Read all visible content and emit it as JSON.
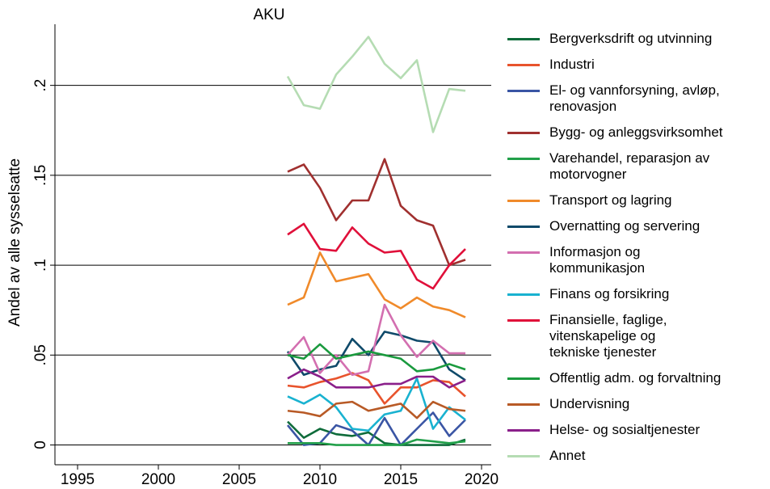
{
  "chart_data": {
    "type": "line",
    "title": "AKU",
    "y_label": "Andel av alle sysselsatte",
    "x": [
      2008,
      2009,
      2010,
      2011,
      2012,
      2013,
      2014,
      2015,
      2016,
      2017,
      2018,
      2019
    ],
    "xlim": [
      1993.6,
      2020.6
    ],
    "xticks": [
      1995,
      2000,
      2005,
      2010,
      2015,
      2020
    ],
    "ylim": [
      -0.011,
      0.234
    ],
    "yticks": [
      0,
      {
        "value": 0.05,
        "label": ".05"
      },
      {
        "value": 0.1,
        "label": ".1"
      },
      {
        "value": 0.15,
        "label": ".15"
      },
      {
        "value": 0.2,
        "label": ".2"
      }
    ],
    "grid": true,
    "series": [
      {
        "name": "Bergverksdrift og utvinning",
        "color": "#0e6b3a",
        "values": [
          0.013,
          0.004,
          0.009,
          0.006,
          0.005,
          0.007,
          0.001,
          0,
          0,
          0,
          0,
          0.003
        ]
      },
      {
        "name": "Industri",
        "color": "#e8532c",
        "values": [
          0.033,
          0.032,
          0.035,
          0.037,
          0.04,
          0.036,
          0.023,
          0.032,
          0.032,
          0.036,
          0.035,
          0.027
        ]
      },
      {
        "name": "El- og vannforsyning, avløp,\nrenovasjon",
        "color": "#3a55a4",
        "values": [
          0.011,
          0.0,
          0.001,
          0.011,
          0.008,
          0.0,
          0.015,
          0.0,
          0.009,
          0.018,
          0.005,
          0.014
        ]
      },
      {
        "name": "Bygg- og anleggsvirksomhet",
        "color": "#a0302f",
        "values": [
          0.152,
          0.156,
          0.143,
          0.125,
          0.136,
          0.136,
          0.159,
          0.133,
          0.125,
          0.122,
          0.1,
          0.103
        ]
      },
      {
        "name": "Varehandel, reparasjon av\nmotorvogner",
        "color": "#22a04a",
        "values": [
          0.001,
          0.001,
          0.001,
          0,
          0,
          0,
          0,
          0,
          0.003,
          0.002,
          0.001,
          0.002
        ]
      },
      {
        "name": "Transport og lagring",
        "color": "#f08a2a",
        "values": [
          0.078,
          0.082,
          0.107,
          0.091,
          0.093,
          0.095,
          0.081,
          0.076,
          0.082,
          0.077,
          0.075,
          0.071
        ]
      },
      {
        "name": "Overnatting og servering",
        "color": "#0f4a6a",
        "values": [
          0.052,
          0.039,
          0.042,
          0.044,
          0.059,
          0.05,
          0.063,
          0.061,
          0.058,
          0.057,
          0.042,
          0.036
        ]
      },
      {
        "name": "Informasjon og\nkommunikasjon",
        "color": "#d36fb0",
        "values": [
          0.05,
          0.06,
          0.04,
          0.05,
          0.039,
          0.041,
          0.078,
          0.061,
          0.049,
          0.058,
          0.051,
          0.051
        ]
      },
      {
        "name": "Finans og forsikring",
        "color": "#19b2d0",
        "values": [
          0.027,
          0.023,
          0.028,
          0.021,
          0.009,
          0.008,
          0.017,
          0.019,
          0.037,
          0.009,
          0.021,
          0.014
        ]
      },
      {
        "name": "Finansielle, faglige,\nvitenskapelige og\ntekniske tjenester",
        "color": "#e0103a",
        "values": [
          0.117,
          0.123,
          0.109,
          0.108,
          0.121,
          0.112,
          0.107,
          0.108,
          0.092,
          0.087,
          0.1,
          0.109
        ]
      },
      {
        "name": "Offentlig adm. og forvaltning",
        "color": "#1a9a3e",
        "values": [
          0.05,
          0.048,
          0.056,
          0.048,
          0.05,
          0.052,
          0.05,
          0.048,
          0.041,
          0.042,
          0.045,
          0.042
        ]
      },
      {
        "name": "Undervisning",
        "color": "#b85a26",
        "values": [
          0.019,
          0.018,
          0.016,
          0.023,
          0.024,
          0.019,
          0.021,
          0.023,
          0.015,
          0.024,
          0.02,
          0.019
        ]
      },
      {
        "name": "Helse- og sosialtjenester",
        "color": "#8a1f8a",
        "values": [
          0.037,
          0.042,
          0.038,
          0.032,
          0.032,
          0.032,
          0.034,
          0.034,
          0.038,
          0.038,
          0.032,
          0.036
        ]
      },
      {
        "name": "Annet",
        "color": "#b5dcb3",
        "values": [
          0.205,
          0.189,
          0.187,
          0.206,
          0.216,
          0.227,
          0.212,
          0.204,
          0.214,
          0.174,
          0.198,
          0.197
        ]
      }
    ]
  }
}
